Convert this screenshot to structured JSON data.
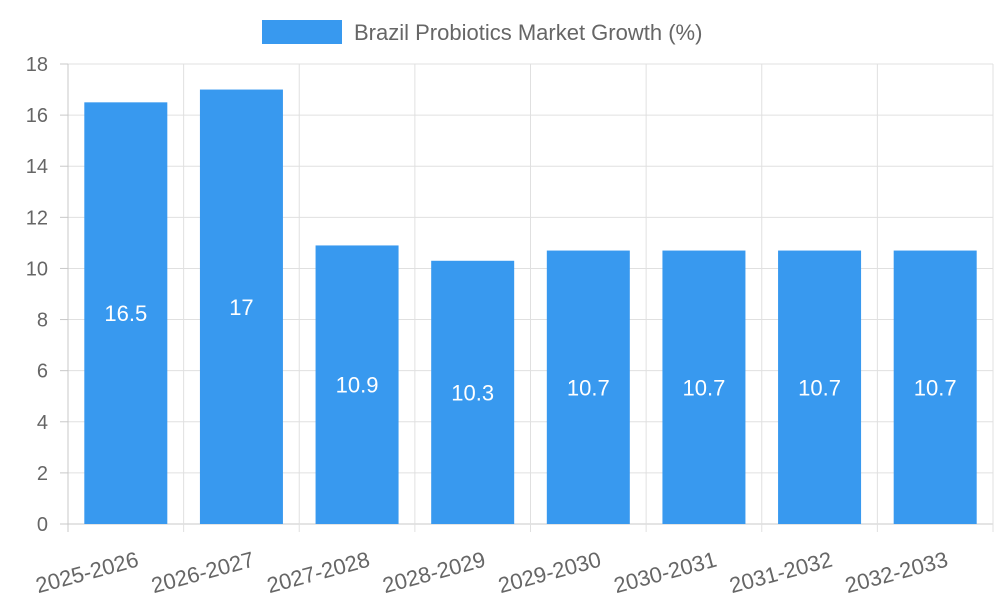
{
  "chart_data": {
    "type": "bar",
    "categories": [
      "2025-2026",
      "2026-2027",
      "2027-2028",
      "2028-2029",
      "2029-2030",
      "2030-2031",
      "2031-2032",
      "2032-2033"
    ],
    "series": [
      {
        "name": "Brazil Probiotics Market Growth (%)",
        "values": [
          16.5,
          17,
          10.9,
          10.3,
          10.7,
          10.7,
          10.7,
          10.7
        ]
      }
    ],
    "ylim": [
      0,
      18
    ],
    "ytick_step": 2,
    "grid": true,
    "legend": "top-center",
    "data_labels": [
      "16.5",
      "17",
      "10.9",
      "10.3",
      "10.7",
      "10.7",
      "10.7",
      "10.7"
    ],
    "title": "",
    "xlabel": "",
    "ylabel": ""
  },
  "colors": {
    "bar": "#3899ef",
    "grid": "#e0e0e0",
    "axis": "#c8c8c8",
    "text": "#666666",
    "label": "#ffffff"
  }
}
